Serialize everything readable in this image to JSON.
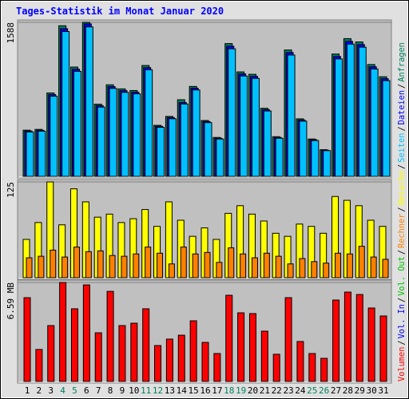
{
  "title": "Tages-Statistik im Monat Januar 2020",
  "legend_separator": "/",
  "chart_data": [
    {
      "type": "bar",
      "series": [
        {
          "name": "Anfragen",
          "color": "#00805c",
          "values": [
            476,
            484,
            860,
            1553,
            1127,
            1588,
            744,
            944,
            902,
            885,
            1143,
            526,
            618,
            790,
            927,
            576,
            401,
            1369,
            1077,
            1052,
            702,
            409,
            1303,
            593,
            385,
            275,
            1261,
            1420,
            1386,
            1153,
            1027
          ]
        },
        {
          "name": "Dateien",
          "color": "#0000ff",
          "values": [
            467,
            475,
            843,
            1523,
            1105,
            1572,
            729,
            925,
            884,
            868,
            1121,
            516,
            606,
            761,
            909,
            565,
            393,
            1342,
            1056,
            1031,
            688,
            401,
            1277,
            581,
            377,
            270,
            1236,
            1392,
            1359,
            1130,
            1007
          ]
        },
        {
          "name": "Seiten",
          "color": "#00c0ff",
          "values": [
            458,
            466,
            826,
            1493,
            1083,
            1541,
            714,
            907,
            866,
            851,
            1099,
            506,
            594,
            746,
            891,
            554,
            385,
            1315,
            1035,
            1010,
            674,
            393,
            1251,
            569,
            369,
            265,
            1211,
            1364,
            1332,
            1107,
            987
          ]
        }
      ],
      "ylim": [
        0,
        1588
      ],
      "yticks": [
        1588
      ]
    },
    {
      "type": "bar",
      "series": [
        {
          "name": "Besuche",
          "color": "#ffff00",
          "values": [
            50,
            72,
            125,
            69,
            116,
            99,
            79,
            83,
            72,
            77,
            89,
            67,
            99,
            75,
            54,
            65,
            50,
            84,
            94,
            83,
            74,
            58,
            54,
            70,
            67,
            58,
            106,
            101,
            94,
            75,
            67
          ]
        },
        {
          "name": "Rechner",
          "color": "#ff8000",
          "values": [
            26,
            28,
            36,
            27,
            40,
            34,
            35,
            29,
            28,
            31,
            40,
            32,
            18,
            40,
            31,
            33,
            20,
            39,
            31,
            26,
            32,
            28,
            18,
            25,
            21,
            19,
            32,
            31,
            41,
            27,
            24
          ]
        }
      ],
      "ylim": [
        0,
        125
      ],
      "yticks": [
        125
      ]
    },
    {
      "type": "bar",
      "categories": [
        "1",
        "2",
        "3",
        "4",
        "5",
        "6",
        "7",
        "8",
        "9",
        "10",
        "11",
        "12",
        "13",
        "14",
        "15",
        "16",
        "17",
        "18",
        "19",
        "20",
        "21",
        "22",
        "23",
        "24",
        "25",
        "26",
        "27",
        "28",
        "29",
        "30",
        "31"
      ],
      "category_colors": [
        "#000000",
        "#000000",
        "#000000",
        "#00805c",
        "#00805c",
        "#000000",
        "#000000",
        "#000000",
        "#000000",
        "#000000",
        "#00805c",
        "#00805c",
        "#000000",
        "#000000",
        "#000000",
        "#000000",
        "#000000",
        "#00805c",
        "#00805c",
        "#000000",
        "#000000",
        "#000000",
        "#000000",
        "#000000",
        "#00805c",
        "#00805c",
        "#000000",
        "#000000",
        "#000000",
        "#000000",
        "#000000"
      ],
      "series": [
        {
          "name": "Volumen",
          "color": "#ff0000",
          "values": [
            5.58,
            2.13,
            3.72,
            6.59,
            4.84,
            6.43,
            3.24,
            6.0,
            3.72,
            3.88,
            4.84,
            2.39,
            2.82,
            3.08,
            4.04,
            2.6,
            1.86,
            5.74,
            4.57,
            4.52,
            3.35,
            1.81,
            5.58,
            2.66,
            1.86,
            1.54,
            5.42,
            5.95,
            5.79,
            4.89,
            4.36
          ]
        }
      ],
      "legend": [
        {
          "name": "Vol. In",
          "color": "#0000ff"
        },
        {
          "name": "Vol. Out",
          "color": "#00c000"
        }
      ],
      "ylim": [
        0,
        6.59
      ],
      "yticks": [
        {
          "value": 6.59,
          "label": "6.59 MB"
        }
      ]
    }
  ]
}
